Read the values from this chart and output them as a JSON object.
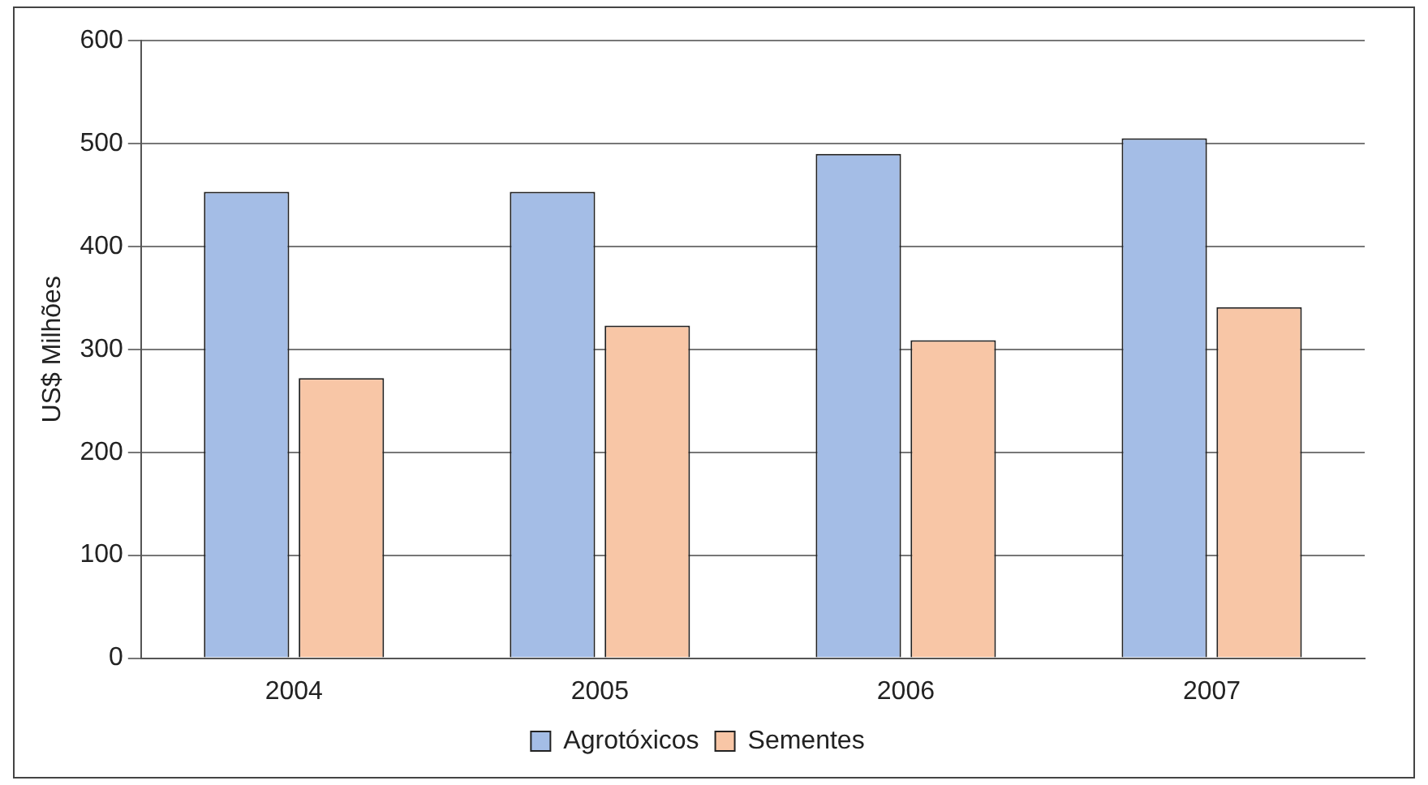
{
  "chart_data": {
    "type": "bar",
    "ylabel": "US$ Milhões",
    "categories": [
      "2004",
      "2005",
      "2006",
      "2007"
    ],
    "series": [
      {
        "name": "Agrotóxicos",
        "color": "#a4bde6",
        "values": [
          453,
          453,
          490,
          505
        ]
      },
      {
        "name": "Sementes",
        "color": "#f8c6a6",
        "values": [
          272,
          323,
          309,
          341
        ]
      }
    ],
    "ylim": [
      0,
      600
    ],
    "yticks": [
      0,
      100,
      200,
      300,
      400,
      500,
      600
    ],
    "grid": "y",
    "legend": "bottom"
  }
}
